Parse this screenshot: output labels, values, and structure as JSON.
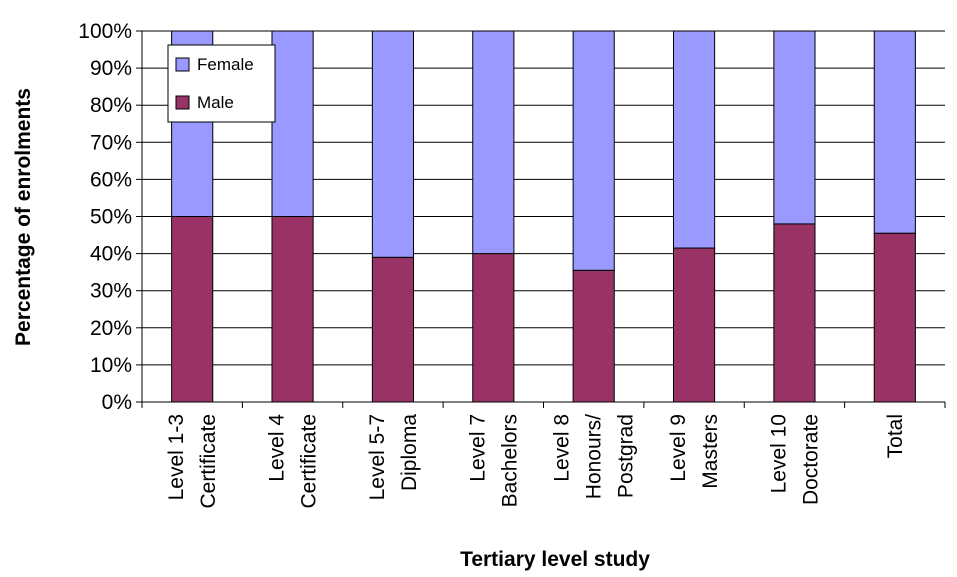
{
  "chart_data": {
    "type": "bar",
    "stacked": true,
    "percent": true,
    "categories": [
      [
        "Level 1-3",
        "Certificate"
      ],
      [
        "Level 4",
        "Certificate"
      ],
      [
        "Level 5-7",
        "Diploma"
      ],
      [
        "Level 7",
        "Bachelors"
      ],
      [
        "Level 8",
        "Honours/",
        "Postgrad"
      ],
      [
        "Level 9",
        "Masters"
      ],
      [
        "Level 10",
        "Doctorate"
      ],
      [
        "Total"
      ]
    ],
    "series": [
      {
        "name": "Male",
        "color": "#993366",
        "values": [
          50,
          50,
          39,
          40,
          35.5,
          41.5,
          48,
          45.5
        ]
      },
      {
        "name": "Female",
        "color": "#9999ff",
        "values": [
          50,
          50,
          61,
          60,
          64.5,
          58.5,
          52,
          54.5
        ]
      }
    ],
    "ylim": [
      0,
      100
    ],
    "yticks": [
      "0%",
      "10%",
      "20%",
      "30%",
      "40%",
      "50%",
      "60%",
      "70%",
      "80%",
      "90%",
      "100%"
    ],
    "xlabel": "Tertiary level study",
    "ylabel": "Percentage of enrolments",
    "grid": true,
    "legend": {
      "position": "top-left",
      "entries": [
        "Female",
        "Male"
      ]
    }
  }
}
